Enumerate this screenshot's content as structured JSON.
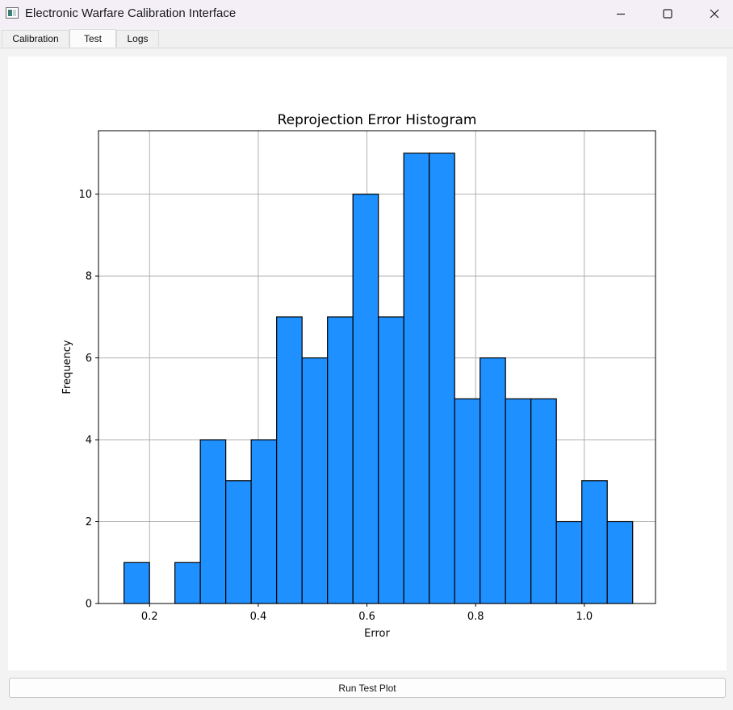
{
  "window": {
    "title": "Electronic Warfare Calibration Interface",
    "app_icon": "window-app-icon",
    "controls": [
      "minimize-icon",
      "maximize-icon",
      "close-icon"
    ]
  },
  "tabs": [
    {
      "label": "Calibration",
      "active": false
    },
    {
      "label": "Test",
      "active": true
    },
    {
      "label": "Logs",
      "active": false
    }
  ],
  "actions": {
    "run_test_plot_label": "Run Test  Plot"
  },
  "chart_data": {
    "type": "bar",
    "title": "Reprojection Error Histogram",
    "xlabel": "Error",
    "ylabel": "Frequency",
    "xlim": [
      0.106,
      1.131
    ],
    "ylim": [
      0,
      11.55
    ],
    "x_ticks": [
      0.2,
      0.4,
      0.6,
      0.8,
      1.0
    ],
    "x_tick_labels": [
      "0.2",
      "0.4",
      "0.6",
      "0.8",
      "1.0"
    ],
    "y_ticks": [
      0,
      2,
      4,
      6,
      8,
      10
    ],
    "y_tick_labels": [
      "0",
      "2",
      "4",
      "6",
      "8",
      "10"
    ],
    "bin_edges": [
      0.153,
      0.1998,
      0.2466,
      0.2934,
      0.3402,
      0.387,
      0.4338,
      0.4806,
      0.5274,
      0.5742,
      0.621,
      0.6678,
      0.7146,
      0.7614,
      0.8082,
      0.855,
      0.9018,
      0.9486,
      0.9954,
      1.0422,
      1.089
    ],
    "values": [
      1,
      0,
      1,
      4,
      3,
      4,
      7,
      6,
      7,
      10,
      7,
      11,
      11,
      5,
      6,
      5,
      5,
      2,
      3,
      2
    ],
    "bar_color": "#1e90ff",
    "edge_color": "#000000",
    "grid": true,
    "legend": "none"
  }
}
